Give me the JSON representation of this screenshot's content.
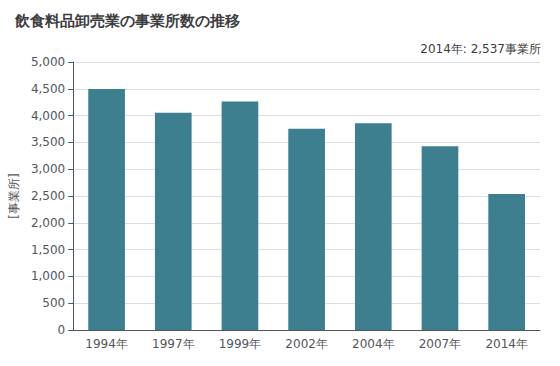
{
  "chart_data": {
    "type": "bar",
    "title": "飲食料品卸売業の事業所数の推移",
    "ylabel": "[事業所]",
    "annotation": "2014年: 2,537事業所",
    "categories": [
      "1994年",
      "1997年",
      "1999年",
      "2002年",
      "2004年",
      "2007年",
      "2014年"
    ],
    "values": [
      4494,
      4051,
      4264,
      3756,
      3858,
      3430,
      2537
    ],
    "color": "#3d7f8f",
    "ylim": [
      0,
      5000
    ],
    "yticks": [
      0,
      500,
      {
        "value": 1000,
        "label": "1,000"
      },
      {
        "value": 1500,
        "label": "1,500"
      },
      {
        "value": 2000,
        "label": "2,000"
      },
      {
        "value": 2500,
        "label": "2,500"
      },
      {
        "value": 3000,
        "label": "3,000"
      },
      {
        "value": 3500,
        "label": "3,500"
      },
      {
        "value": 4000,
        "label": "4,000"
      },
      {
        "value": 4500,
        "label": "4,500"
      },
      {
        "value": 5000,
        "label": "5,000"
      }
    ],
    "grid": true
  }
}
